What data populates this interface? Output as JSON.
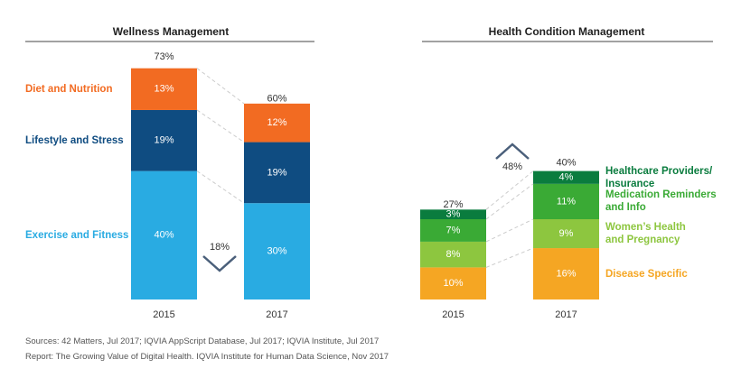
{
  "chart_data": [
    {
      "type": "bar",
      "stacked": true,
      "title": "Wellness Management",
      "categories": [
        "2015",
        "2017"
      ],
      "series": [
        {
          "name": "Exercise and Fitness",
          "color": "#29abe2",
          "values": [
            40,
            30
          ],
          "value_labels": [
            "40%",
            "30%"
          ]
        },
        {
          "name": "Lifestyle and Stress",
          "color": "#0f4c81",
          "values": [
            19,
            19
          ],
          "value_labels": [
            "19%",
            "19%"
          ]
        },
        {
          "name": "Diet and Nutrition",
          "color": "#f26b22",
          "values": [
            13,
            12
          ],
          "value_labels": [
            "13%",
            "12%"
          ]
        }
      ],
      "totals": [
        73,
        60
      ],
      "total_labels": [
        "73%",
        "60%"
      ],
      "change_label": "18%",
      "change_direction": "down",
      "ylim": [
        0,
        80
      ]
    },
    {
      "type": "bar",
      "stacked": true,
      "title": "Health Condition Management",
      "categories": [
        "2015",
        "2017"
      ],
      "series": [
        {
          "name": "Disease Specific",
          "color": "#f5a623",
          "values": [
            10,
            16
          ],
          "value_labels": [
            "10%",
            "16%"
          ]
        },
        {
          "name": "Women’s Health\nand Pregnancy",
          "color": "#8dc63f",
          "values": [
            8,
            9
          ],
          "value_labels": [
            "8%",
            "9%"
          ]
        },
        {
          "name": "Medication Reminders\nand Info",
          "color": "#3aaa35",
          "values": [
            7,
            11
          ],
          "value_labels": [
            "7%",
            "11%"
          ]
        },
        {
          "name": "Healthcare Providers/\nInsurance",
          "color": "#0a7c3e",
          "values": [
            3,
            4
          ],
          "value_labels": [
            "3%",
            "4%"
          ]
        }
      ],
      "totals": [
        27,
        40
      ],
      "total_labels": [
        "27%",
        "40%"
      ],
      "change_label": "48%",
      "change_direction": "up",
      "ylim": [
        0,
        80
      ]
    }
  ],
  "footer": {
    "lines": [
      "Sources: 42 Matters, Jul 2017; IQVIA AppScript Database, Jul 2017; IQVIA Institute, Jul 2017",
      "Report: The Growing Value of Digital Health. IQVIA Institute for Human Data Science, Nov 2017"
    ]
  }
}
